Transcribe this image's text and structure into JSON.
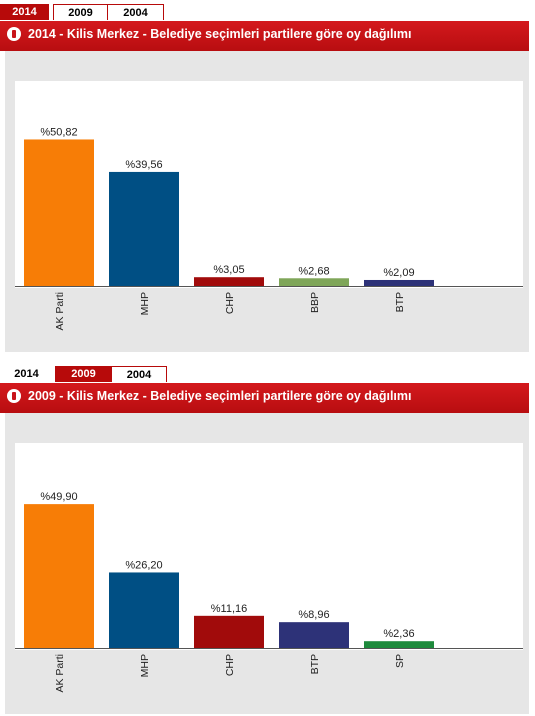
{
  "charts": [
    {
      "tabs": [
        "2014",
        "2009",
        "2004"
      ],
      "active_tab": 0,
      "title": "2014 - Kilis Merkez - Belediye seçimleri partilere göre oy dağılımı",
      "chart_data": {
        "type": "bar",
        "categories": [
          "AK Parti",
          "MHP",
          "CHP",
          "BBP",
          "BTP"
        ],
        "values": [
          50.82,
          39.56,
          3.05,
          2.68,
          2.09
        ],
        "labels": [
          "%50,82",
          "%39,56",
          "%3,05",
          "%2,68",
          "%2,09"
        ],
        "colors": [
          "#f77d06",
          "#004f84",
          "#a10b0b",
          "#7fa659",
          "#2d3278"
        ],
        "ylim": [
          0,
          60
        ],
        "grid": false
      }
    },
    {
      "tabs": [
        "2014",
        "2009",
        "2004"
      ],
      "active_tab": 1,
      "title": "2009 - Kilis Merkez - Belediye seçimleri partilere göre oy dağılımı",
      "chart_data": {
        "type": "bar",
        "categories": [
          "AK Parti",
          "MHP",
          "CHP",
          "BTP",
          "SP"
        ],
        "values": [
          49.9,
          26.2,
          11.16,
          8.96,
          2.36
        ],
        "labels": [
          "%49,90",
          "%26,20",
          "%11,16",
          "%8,96",
          "%2,36"
        ],
        "colors": [
          "#f77d06",
          "#004f84",
          "#a10b0b",
          "#2d3278",
          "#1e8a3c"
        ],
        "ylim": [
          0,
          60
        ],
        "grid": false
      }
    }
  ]
}
